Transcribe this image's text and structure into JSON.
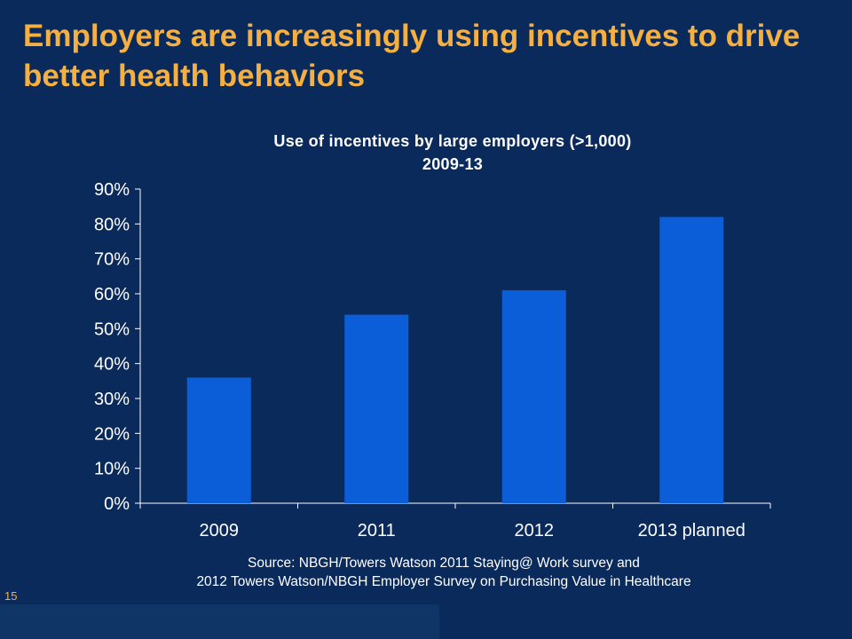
{
  "slide": {
    "title": "Employers are increasingly using incentives to drive better health behaviors",
    "source_line1": "Source: NBGH/Towers Watson 2011 Staying@ Work survey and",
    "source_line2": "2012 Towers Watson/NBGH Employer Survey on Purchasing Value in Healthcare",
    "page_number": "15"
  },
  "colors": {
    "background": "#0a2a5c",
    "title": "#f5b041",
    "bar": "#0b5ed7",
    "axis": "#ffffff"
  },
  "chart_data": {
    "type": "bar",
    "title": "Use of incentives by large employers (>1,000)",
    "subtitle": "2009-13",
    "categories": [
      "2009",
      "2011",
      "2012",
      "2013 planned"
    ],
    "values": [
      36,
      54,
      61,
      82
    ],
    "unit": "%",
    "ylim": [
      0,
      90
    ],
    "yticks": [
      0,
      10,
      20,
      30,
      40,
      50,
      60,
      70,
      80,
      90
    ],
    "ytick_labels": [
      "0%",
      "10%",
      "20%",
      "30%",
      "40%",
      "50%",
      "60%",
      "70%",
      "80%",
      "90%"
    ],
    "xlabel": "",
    "ylabel": "",
    "grid": false,
    "legend": "none"
  }
}
